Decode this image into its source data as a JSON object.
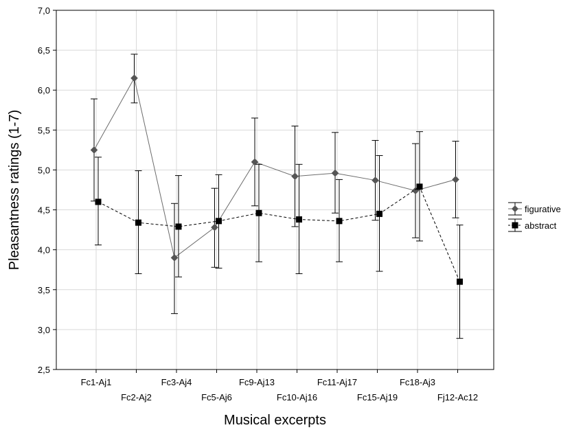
{
  "chart_data": {
    "type": "line",
    "title": "",
    "xlabel": "Musical excerpts",
    "ylabel": "Pleasantness ratings (1-7)",
    "ylim": [
      2.5,
      7.0
    ],
    "yticks": [
      "2,5",
      "3,0",
      "3,5",
      "4,0",
      "4,5",
      "5,0",
      "5,5",
      "6,0",
      "6,5",
      "7,0"
    ],
    "categories": [
      "Fc1-Aj1",
      "Fc2-Aj2",
      "Fc3-Aj4",
      "Fc5-Aj6",
      "Fc9-Aj13",
      "Fc10-Aj16",
      "Fc11-Aj17",
      "Fc15-Aj19",
      "Fc18-Aj3",
      "Fj12-Ac12"
    ],
    "grid": true,
    "legend_position": "right",
    "series": [
      {
        "name": "figurative",
        "color": "#555555",
        "marker": "diamond",
        "line_style": "solid",
        "values": [
          5.25,
          6.15,
          3.9,
          4.28,
          5.1,
          4.92,
          4.96,
          4.87,
          4.74,
          4.88
        ],
        "lower": [
          4.61,
          5.84,
          3.2,
          3.78,
          4.55,
          4.29,
          4.46,
          4.37,
          4.15,
          4.4
        ],
        "upper": [
          5.89,
          6.45,
          4.58,
          4.77,
          5.65,
          5.55,
          5.47,
          5.37,
          5.33,
          5.36
        ]
      },
      {
        "name": "abstract",
        "color": "#000000",
        "marker": "square",
        "line_style": "dashed",
        "values": [
          4.6,
          4.34,
          4.29,
          4.36,
          4.46,
          4.38,
          4.36,
          4.45,
          4.79,
          3.6
        ],
        "lower": [
          4.06,
          3.7,
          3.66,
          3.77,
          3.85,
          3.7,
          3.85,
          3.73,
          4.11,
          2.89
        ],
        "upper": [
          5.16,
          4.99,
          4.93,
          4.94,
          5.07,
          5.07,
          4.88,
          5.18,
          5.48,
          4.31
        ]
      }
    ]
  }
}
